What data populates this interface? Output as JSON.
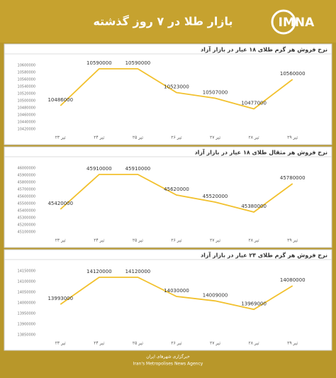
{
  "header": {
    "title": "بازار طلا در ۷ روز گذشته",
    "logo": "IMNA"
  },
  "chart_data": [
    {
      "type": "line",
      "title": "نرخ فروش هر گرم طلای ۱۸ عیار در بازار آزاد",
      "categories": [
        "۲۳ تیر",
        "۲۴ تیر",
        "۲۵ تیر",
        "۲۶ تیر",
        "۲۷ تیر",
        "۲۸ تیر",
        "۲۹ تیر"
      ],
      "values": [
        10486000,
        10590000,
        10590000,
        10523000,
        10507000,
        10477000,
        10560000
      ],
      "color": "#f2c12e",
      "ylim": [
        10420000,
        10600000
      ],
      "yticks": [
        10420000,
        10440000,
        10460000,
        10480000,
        10500000,
        10520000,
        10540000,
        10560000,
        10580000,
        10600000
      ]
    },
    {
      "type": "line",
      "title": "نرخ فروش هر مثقال طلای ۱۸ عیار در بازار آزاد",
      "categories": [
        "۲۳ تیر",
        "۲۴ تیر",
        "۲۵ تیر",
        "۲۶ تیر",
        "۲۷ تیر",
        "۲۸ تیر",
        "۲۹ تیر"
      ],
      "values": [
        45420000,
        45910000,
        45910000,
        45620000,
        45520000,
        45380000,
        45780000
      ],
      "color": "#f2c12e",
      "ylim": [
        45100000,
        46000000
      ],
      "yticks": [
        45100000,
        45200000,
        45300000,
        45400000,
        45500000,
        45600000,
        45700000,
        45800000,
        45900000,
        46000000
      ]
    },
    {
      "type": "line",
      "title": "نرخ فروش هر گرم طلای ۲۴ عیار در بازار آزاد",
      "categories": [
        "۲۳ تیر",
        "۲۴ تیر",
        "۲۵ تیر",
        "۲۶ تیر",
        "۲۷ تیر",
        "۲۸ تیر",
        "۲۹ تیر"
      ],
      "values": [
        13993000,
        14120000,
        14120000,
        14030000,
        14009000,
        13969000,
        14080000
      ],
      "color": "#f2c12e",
      "ylim": [
        13850000,
        14150000
      ],
      "yticks": [
        13850000,
        13900000,
        13950000,
        14000000,
        14050000,
        14100000,
        14150000
      ]
    }
  ],
  "footer": {
    "line1": "خبرگزاری شهرهای ایران",
    "line2": "Iran's Metropolises News Agency"
  }
}
